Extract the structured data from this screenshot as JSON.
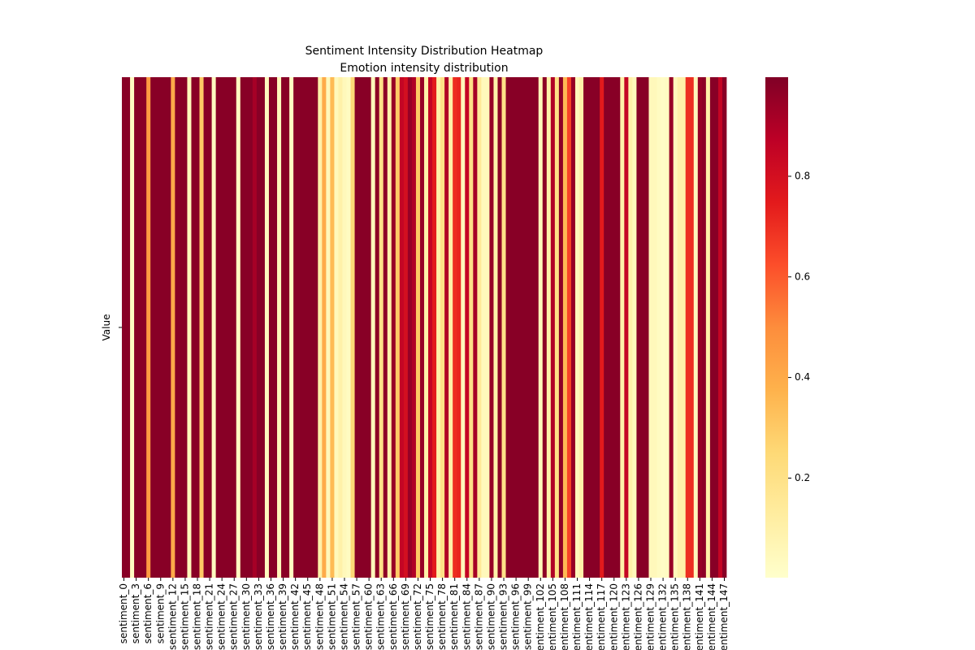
{
  "chart_data": {
    "type": "heatmap",
    "title": "Sentiment Intensity Distribution Heatmap",
    "subtitle": "Emotion intensity distribution",
    "rows": [
      "Value"
    ],
    "categories": [
      "sentiment_0",
      null,
      null,
      "sentiment_3",
      null,
      null,
      "sentiment_6",
      null,
      null,
      "sentiment_9",
      null,
      null,
      "sentiment_12",
      null,
      null,
      "sentiment_15",
      null,
      null,
      "sentiment_18",
      null,
      null,
      "sentiment_21",
      null,
      null,
      "sentiment_24",
      null,
      null,
      "sentiment_27",
      null,
      null,
      "sentiment_30",
      null,
      null,
      "sentiment_33",
      null,
      null,
      "sentiment_36",
      null,
      null,
      "sentiment_39",
      null,
      null,
      "sentiment_42",
      null,
      null,
      "sentiment_45",
      null,
      null,
      "sentiment_48",
      null,
      null,
      "sentiment_51",
      null,
      null,
      "sentiment_54",
      null,
      null,
      "sentiment_57",
      null,
      null,
      "sentiment_60",
      null,
      null,
      "sentiment_63",
      null,
      null,
      "sentiment_66",
      null,
      null,
      "sentiment_69",
      null,
      null,
      "sentiment_72",
      null,
      null,
      "sentiment_75",
      null,
      null,
      "sentiment_78",
      null,
      null,
      "sentiment_81",
      null,
      null,
      "sentiment_84",
      null,
      null,
      "sentiment_87",
      null,
      null,
      "sentiment_90",
      null,
      null,
      "sentiment_93",
      null,
      null,
      "sentiment_96",
      null,
      null,
      "sentiment_99",
      null,
      null,
      "sentiment_102",
      null,
      null,
      "sentiment_105",
      null,
      null,
      "sentiment_108",
      null,
      null,
      "sentiment_111",
      null,
      null,
      "sentiment_114",
      null,
      null,
      "sentiment_117",
      null,
      null,
      "sentiment_120",
      null,
      null,
      "sentiment_123",
      null,
      null,
      "sentiment_126",
      null,
      null,
      "sentiment_129",
      null,
      null,
      "sentiment_132",
      null,
      null,
      "sentiment_135",
      null,
      null,
      "sentiment_138",
      null,
      null,
      "sentiment_141",
      null,
      null,
      "sentiment_144",
      null,
      null,
      "sentiment_147"
    ],
    "values": [
      0.98,
      0.98,
      0.03,
      0.98,
      0.98,
      0.98,
      0.45,
      0.98,
      0.98,
      0.98,
      0.98,
      0.98,
      0.4,
      0.98,
      0.98,
      0.98,
      0.05,
      0.98,
      0.98,
      0.3,
      0.98,
      0.98,
      0.04,
      0.98,
      0.98,
      0.98,
      0.98,
      0.98,
      0.03,
      0.98,
      0.98,
      0.98,
      0.92,
      0.98,
      0.98,
      0.04,
      0.98,
      0.98,
      0.05,
      0.98,
      0.98,
      0.03,
      0.98,
      0.98,
      0.98,
      0.98,
      0.98,
      0.98,
      0.1,
      0.4,
      0.05,
      0.35,
      0.05,
      0.1,
      0.05,
      0.03,
      0.25,
      0.98,
      0.98,
      0.98,
      0.98,
      0.05,
      0.97,
      0.2,
      0.97,
      0.1,
      0.95,
      0.3,
      0.85,
      0.8,
      0.95,
      0.9,
      0.3,
      0.95,
      0.1,
      0.85,
      0.75,
      0.1,
      0.2,
      0.9,
      0.1,
      0.7,
      0.72,
      0.05,
      0.85,
      0.2,
      0.92,
      0.15,
      0.05,
      0.05,
      0.95,
      0.1,
      0.97,
      0.2,
      0.98,
      0.98,
      0.98,
      0.98,
      0.98,
      0.98,
      0.98,
      0.98,
      0.05,
      0.97,
      0.1,
      0.9,
      0.2,
      0.97,
      0.35,
      0.65,
      0.95,
      0.05,
      0.1,
      0.98,
      0.98,
      0.98,
      0.98,
      0.75,
      0.98,
      0.98,
      0.98,
      0.98,
      0.1,
      0.85,
      0.1,
      0.05,
      0.98,
      0.98,
      0.98,
      0.05,
      0.05,
      0.03,
      0.02,
      0.03,
      0.95,
      0.05,
      0.1,
      0.1,
      0.7,
      0.7,
      0.05,
      0.95,
      0.97,
      0.1,
      0.98,
      0.98,
      0.85,
      0.98
    ],
    "colormap": "YlOrRd",
    "clim": [
      0.002,
      0.997
    ],
    "cbar_ticks": [
      0.2,
      0.4,
      0.6,
      0.8
    ]
  }
}
